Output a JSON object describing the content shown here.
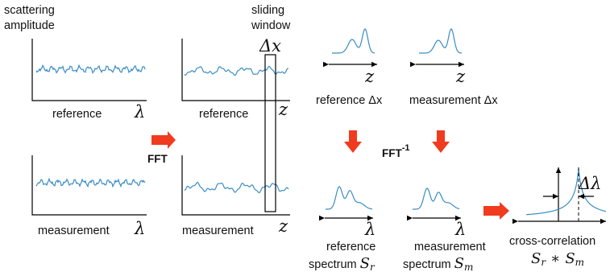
{
  "colors": {
    "curve": "#3a8dc4",
    "arrow": "#f03b1f",
    "ink": "#000000"
  },
  "labels": {
    "scattering": "scattering",
    "amplitude": "amplitude",
    "sliding": "sliding",
    "window": "window",
    "delta_x": "Δx",
    "lambda": "λ",
    "z": "z",
    "reference": "reference",
    "measurement": "measurement",
    "fft": "FFT",
    "ifft": "FFT",
    "ifft_exp": "-1",
    "ref_dx": "reference Δx",
    "meas_dx": "measurement Δx",
    "reference2": "reference",
    "spectrum_sr": "spectrum",
    "sr_sym": "S",
    "sr_sub": "r",
    "measurement2": "measurement",
    "spectrum_sm": "spectrum",
    "sm_sym": "S",
    "sm_sub": "m",
    "cross_corr": "cross-correlation",
    "conv_left": "S",
    "conv_left_sub": "r",
    "conv_op": "∗",
    "conv_right": "S",
    "conv_right_sub": "m",
    "delta_lambda": "Δλ"
  }
}
